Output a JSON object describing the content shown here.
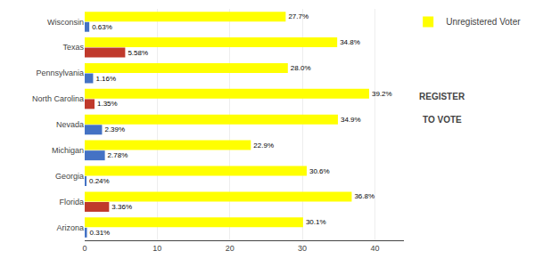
{
  "chart_data": {
    "type": "bar",
    "orientation": "horizontal",
    "categories": [
      "Arizona",
      "Florida",
      "Georgia",
      "Michigan",
      "Nevada",
      "North Carolina",
      "Pennsylvania",
      "Texas",
      "Wisconsin"
    ],
    "series": [
      {
        "name": "Unregistered Voter",
        "color": "#FFFF00",
        "values": [
          30.1,
          36.8,
          30.6,
          22.9,
          34.9,
          39.2,
          28.0,
          34.8,
          27.7
        ],
        "value_labels": [
          "30.1%",
          "36.8%",
          "30.6%",
          "22.9%",
          "34.9%",
          "39.2%",
          "28.0%",
          "34.8%",
          "27.7%"
        ]
      },
      {
        "colors": [
          "#4472C4",
          "#C0392B",
          "#4472C4",
          "#4472C4",
          "#4472C4",
          "#C0392B",
          "#4472C4",
          "#C0392B",
          "#4472C4"
        ],
        "values": [
          0.31,
          3.36,
          0.24,
          2.78,
          2.39,
          1.35,
          1.16,
          5.58,
          0.63
        ],
        "value_labels": [
          "0.31%",
          "3.36%",
          "0.24%",
          "2.78%",
          "2.39%",
          "1.35%",
          "1.16%",
          "5.58%",
          "0.63%"
        ]
      }
    ],
    "xlim": [
      0,
      44
    ],
    "xticks": [
      0,
      10,
      20,
      30,
      40
    ],
    "grid": true,
    "data_labels": true,
    "legend": "upper right",
    "annotations": [
      "REGISTER",
      "TO VOTE"
    ]
  }
}
